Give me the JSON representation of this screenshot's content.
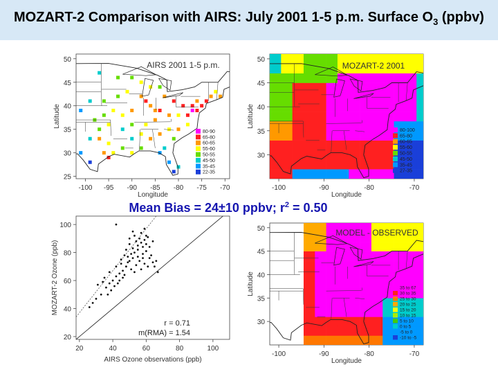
{
  "title": {
    "main": "MOZART-2 Comparison with AIRS: July 2001 1-5 p.m. Surface O",
    "sub": "3",
    "suffix": " (ppbv)"
  },
  "mean_bias": {
    "text": "Mean Bias = 24±10 ppbv; r",
    "sup": "2",
    "tail": " = 0.50"
  },
  "colors": {
    "title_bg": "#d7e8f6",
    "mean_bias_text": "#1616b0"
  },
  "panels": {
    "tl": {
      "ylabel": "Latitude",
      "xlabel": "Longitude"
    },
    "tr": {
      "ylabel": "Latitude",
      "xlabel": "Longitude"
    },
    "br": {
      "ylabel": "Latitude",
      "xlabel": "Longitude"
    }
  },
  "chart_data": [
    {
      "type": "heatmap",
      "title": "AIRS 2001 1-5 p.m.",
      "xlabel": "Longitude",
      "ylabel": "Latitude",
      "xticks": [
        -100,
        -95,
        -90,
        -85,
        -80,
        -75,
        -70
      ],
      "yticks": [
        25,
        30,
        35,
        40,
        45,
        50
      ],
      "xlim": [
        -102,
        -69
      ],
      "ylim": [
        24.5,
        51
      ],
      "legend": [
        "80-90",
        "65-80",
        "60-65",
        "55-60",
        "50-55",
        "45-50",
        "35-45",
        "22-35"
      ],
      "legend_colors": [
        "#ff00ff",
        "#ff2020",
        "#ff9900",
        "#ffff00",
        "#66dd00",
        "#00cccc",
        "#0099ff",
        "#1a3fd9"
      ],
      "legend_position": "bottom-right",
      "cells": [
        {
          "lon": -97,
          "lat": 47,
          "bin": 5
        },
        {
          "lon": -93,
          "lat": 46,
          "bin": 4
        },
        {
          "lon": -90,
          "lat": 46,
          "bin": 4
        },
        {
          "lon": -88,
          "lat": 45,
          "bin": 3
        },
        {
          "lon": -86,
          "lat": 44,
          "bin": 3
        },
        {
          "lon": -84,
          "lat": 44,
          "bin": 4
        },
        {
          "lon": -83,
          "lat": 42,
          "bin": 2
        },
        {
          "lon": -81,
          "lat": 41,
          "bin": 1
        },
        {
          "lon": -79,
          "lat": 40,
          "bin": 1
        },
        {
          "lon": -77,
          "lat": 40,
          "bin": 1
        },
        {
          "lon": -76,
          "lat": 41,
          "bin": 2
        },
        {
          "lon": -75,
          "lat": 40,
          "bin": 1
        },
        {
          "lon": -74,
          "lat": 41,
          "bin": 1
        },
        {
          "lon": -73,
          "lat": 42,
          "bin": 2
        },
        {
          "lon": -72,
          "lat": 43,
          "bin": 3
        },
        {
          "lon": -71,
          "lat": 42,
          "bin": 2
        },
        {
          "lon": -88,
          "lat": 42,
          "bin": 2
        },
        {
          "lon": -87,
          "lat": 41,
          "bin": 1
        },
        {
          "lon": -86,
          "lat": 40,
          "bin": 2
        },
        {
          "lon": -85,
          "lat": 39,
          "bin": 2
        },
        {
          "lon": -84,
          "lat": 39,
          "bin": 1
        },
        {
          "lon": -82,
          "lat": 38,
          "bin": 2
        },
        {
          "lon": -80,
          "lat": 38,
          "bin": 3
        },
        {
          "lon": -78,
          "lat": 38,
          "bin": 1
        },
        {
          "lon": -77,
          "lat": 39,
          "bin": 0
        },
        {
          "lon": -76,
          "lat": 39,
          "bin": 1
        },
        {
          "lon": -90,
          "lat": 39,
          "bin": 2
        },
        {
          "lon": -92,
          "lat": 38,
          "bin": 3
        },
        {
          "lon": -94,
          "lat": 39,
          "bin": 3
        },
        {
          "lon": -96,
          "lat": 38,
          "bin": 4
        },
        {
          "lon": -98,
          "lat": 37,
          "bin": 4
        },
        {
          "lon": -95,
          "lat": 36,
          "bin": 3
        },
        {
          "lon": -97,
          "lat": 35,
          "bin": 4
        },
        {
          "lon": -99,
          "lat": 33,
          "bin": 5
        },
        {
          "lon": -97,
          "lat": 33,
          "bin": 2
        },
        {
          "lon": -95,
          "lat": 32,
          "bin": 3
        },
        {
          "lon": -96,
          "lat": 30,
          "bin": 2
        },
        {
          "lon": -95,
          "lat": 29,
          "bin": 1
        },
        {
          "lon": -94,
          "lat": 30,
          "bin": 3
        },
        {
          "lon": -92,
          "lat": 31,
          "bin": 4
        },
        {
          "lon": -90,
          "lat": 30,
          "bin": 3
        },
        {
          "lon": -88,
          "lat": 31,
          "bin": 4
        },
        {
          "lon": -90,
          "lat": 33,
          "bin": 5
        },
        {
          "lon": -88,
          "lat": 34,
          "bin": 3
        },
        {
          "lon": -86,
          "lat": 33,
          "bin": 2
        },
        {
          "lon": -84,
          "lat": 34,
          "bin": 2
        },
        {
          "lon": -82,
          "lat": 35,
          "bin": 3
        },
        {
          "lon": -80,
          "lat": 35,
          "bin": 2
        },
        {
          "lon": -78,
          "lat": 36,
          "bin": 3
        },
        {
          "lon": -81,
          "lat": 33,
          "bin": 4
        },
        {
          "lon": -83,
          "lat": 31,
          "bin": 5
        },
        {
          "lon": -84,
          "lat": 30,
          "bin": 6
        },
        {
          "lon": -82,
          "lat": 28,
          "bin": 6
        },
        {
          "lon": -81,
          "lat": 26,
          "bin": 7
        },
        {
          "lon": -80,
          "lat": 27,
          "bin": 5
        },
        {
          "lon": -87,
          "lat": 36,
          "bin": 3
        },
        {
          "lon": -85,
          "lat": 37,
          "bin": 2
        },
        {
          "lon": -90,
          "lat": 36,
          "bin": 4
        },
        {
          "lon": -92,
          "lat": 35,
          "bin": 5
        },
        {
          "lon": -101,
          "lat": 39,
          "bin": 6
        },
        {
          "lon": -99,
          "lat": 41,
          "bin": 5
        },
        {
          "lon": -96,
          "lat": 41,
          "bin": 4
        },
        {
          "lon": -93,
          "lat": 42,
          "bin": 4
        },
        {
          "lon": -91,
          "lat": 43,
          "bin": 3
        },
        {
          "lon": -101,
          "lat": 30,
          "bin": 6
        },
        {
          "lon": -99,
          "lat": 28,
          "bin": 7
        }
      ]
    },
    {
      "type": "heatmap",
      "title": "MOZART-2 2001",
      "xlabel": "Longitude",
      "ylabel": "Latitude",
      "xticks": [
        -100,
        -90,
        -80,
        -70
      ],
      "yticks": [
        30,
        35,
        40,
        45,
        50
      ],
      "xlim": [
        -102,
        -68
      ],
      "ylim": [
        25,
        51
      ],
      "legend": [
        "80-100",
        "65-80",
        "60-65",
        "55-60",
        "50-55",
        "45-50",
        "35-45",
        "27-35"
      ],
      "legend_colors": [
        "#ff00ff",
        "#ff2020",
        "#ff9900",
        "#ffff00",
        "#66dd00",
        "#00cccc",
        "#0099ff",
        "#1a3fd9"
      ],
      "legend_position": "bottom-right"
    },
    {
      "type": "scatter",
      "xlabel": "AIRS Ozone observations (ppb)",
      "ylabel": "MOZART-2 Ozone (ppb)",
      "xlim": [
        18,
        110
      ],
      "ylim": [
        18,
        106
      ],
      "xticks": [
        20,
        40,
        60,
        80,
        100
      ],
      "yticks": [
        20,
        40,
        60,
        80,
        100
      ],
      "annotation_r": "r = 0.71",
      "annotation_m": "m(RMA) = 1.54",
      "points": [
        [
          42,
          100
        ],
        [
          28,
          44
        ],
        [
          26,
          41
        ],
        [
          30,
          47
        ],
        [
          33,
          50
        ],
        [
          36,
          55
        ],
        [
          38,
          58
        ],
        [
          35,
          62
        ],
        [
          40,
          60
        ],
        [
          42,
          63
        ],
        [
          44,
          65
        ],
        [
          46,
          67
        ],
        [
          48,
          70
        ],
        [
          45,
          72
        ],
        [
          50,
          74
        ],
        [
          52,
          76
        ],
        [
          47,
          78
        ],
        [
          53,
          80
        ],
        [
          55,
          82
        ],
        [
          58,
          84
        ],
        [
          50,
          86
        ],
        [
          54,
          88
        ],
        [
          56,
          90
        ],
        [
          60,
          92
        ],
        [
          57,
          94
        ],
        [
          52,
          95
        ],
        [
          59,
          97
        ],
        [
          48,
          82
        ],
        [
          51,
          79
        ],
        [
          49,
          73
        ],
        [
          55,
          77
        ],
        [
          58,
          79
        ],
        [
          60,
          81
        ],
        [
          62,
          76
        ],
        [
          64,
          73
        ],
        [
          61,
          70
        ],
        [
          57,
          68
        ],
        [
          53,
          66
        ],
        [
          46,
          62
        ],
        [
          43,
          58
        ],
        [
          39,
          53
        ],
        [
          37,
          50
        ],
        [
          41,
          56
        ],
        [
          44,
          60
        ],
        [
          47,
          64
        ],
        [
          51,
          68
        ],
        [
          54,
          71
        ],
        [
          56,
          74
        ],
        [
          59,
          72
        ],
        [
          63,
          78
        ],
        [
          65,
          70
        ],
        [
          66,
          74
        ],
        [
          67,
          66
        ],
        [
          31,
          57
        ],
        [
          34,
          59
        ],
        [
          38,
          66
        ],
        [
          42,
          70
        ],
        [
          45,
          75
        ],
        [
          49,
          77
        ],
        [
          52,
          83
        ],
        [
          55,
          85
        ],
        [
          57,
          87
        ],
        [
          59,
          89
        ],
        [
          61,
          91
        ],
        [
          53,
          92
        ],
        [
          50,
          90
        ],
        [
          58,
          76
        ],
        [
          62,
          84
        ],
        [
          60,
          86
        ],
        [
          64,
          88
        ]
      ],
      "lines": [
        {
          "name": "1:1",
          "from": [
            18,
            18
          ],
          "to": [
            106,
            106
          ]
        },
        {
          "name": "RMA fit",
          "from": [
            18,
            34
          ],
          "to": [
            66,
            106
          ]
        }
      ]
    },
    {
      "type": "heatmap",
      "title": "MODEL - OBSERVED",
      "xlabel": "Longitude",
      "ylabel": "Latitude",
      "xticks": [
        -100,
        -90,
        -80,
        -70
      ],
      "yticks": [
        30,
        35,
        40,
        45,
        50
      ],
      "xlim": [
        -102,
        -68
      ],
      "ylim": [
        25,
        51
      ],
      "legend": [
        "35 to 67",
        "30 to 35",
        "25 to 30",
        "20 to 25",
        "15 to 20",
        "10 to 15",
        "5 to 10",
        "0 to 5",
        "-5 to 0",
        "-10 to -5"
      ],
      "legend_colors": [
        "#ff00ff",
        "#ff2020",
        "#ff7700",
        "#ffaa00",
        "#ffff00",
        "#aaee00",
        "#44cc00",
        "#00cccc",
        "#0099ff",
        "#1a3fd9"
      ],
      "legend_position": "bottom-right"
    }
  ]
}
